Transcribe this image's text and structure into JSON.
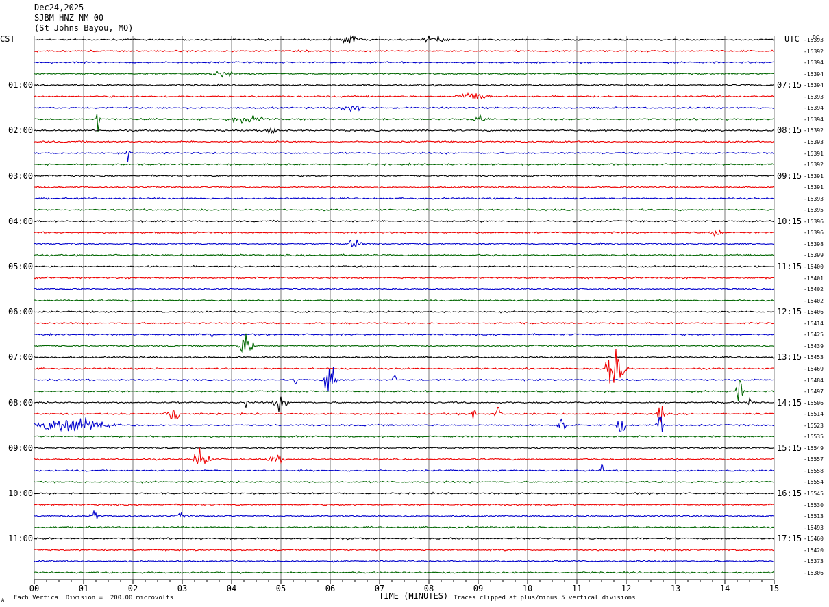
{
  "header": {
    "date": "Dec24,2025",
    "station": "SJBM HNZ NM 00",
    "location": "(St Johns Bayou, MO)"
  },
  "left_tz": "CST",
  "right_tz": "UTC",
  "dc_header": "DC",
  "cst_labels": [
    "01:00",
    "02:00",
    "03:00",
    "04:00",
    "05:00",
    "06:00",
    "07:00",
    "08:00",
    "09:00",
    "10:00",
    "11:00"
  ],
  "utc_labels": [
    "07:15",
    "08:15",
    "09:15",
    "10:15",
    "11:15",
    "12:15",
    "13:15",
    "14:15",
    "15:15",
    "16:15",
    "17:15"
  ],
  "footer": {
    "scale": "Each Vertical Division =  200.00 microvolts",
    "xlabel": "TIME (MINUTES)",
    "clip_note": "Traces clipped at plus/minus 5 vertical divisions",
    "corner_mark": "A"
  },
  "colors": {
    "trace_cycle": [
      "#000000",
      "#ee0000",
      "#0000cc",
      "#006600"
    ],
    "grid": "#7a7a7a"
  },
  "chart_data": {
    "type": "line",
    "title": "",
    "xlabel": "TIME (MINUTES)",
    "ylabel": "",
    "xlim": [
      0,
      15
    ],
    "x_ticks": [
      "00",
      "01",
      "02",
      "03",
      "04",
      "05",
      "06",
      "07",
      "08",
      "09",
      "10",
      "11",
      "12",
      "13",
      "14",
      "15"
    ],
    "row_minutes": 15,
    "dc_offsets": [
      -15393,
      -15392,
      -15394,
      -15394,
      -15394,
      -15393,
      -15394,
      -15394,
      -15392,
      -15393,
      -15391,
      -15392,
      -15391,
      -15391,
      -15393,
      -15395,
      -15396,
      -15396,
      -15398,
      -15399,
      -15400,
      -15401,
      -15402,
      -15402,
      -15406,
      -15414,
      -15425,
      -15439,
      -15453,
      -15469,
      -15484,
      -15497,
      -15506,
      -15514,
      -15523,
      -15535,
      -15549,
      -15557,
      -15558,
      -15554,
      -15545,
      -15530,
      -15513,
      -15493,
      -15460,
      -15420,
      -15373,
      -15306
    ],
    "events": [
      {
        "row": 0,
        "minute": 6.4,
        "amp": 1.2,
        "dur": 0.3
      },
      {
        "row": 0,
        "minute": 8.1,
        "amp": 1.2,
        "dur": 0.3
      },
      {
        "row": 3,
        "minute": 3.8,
        "amp": 1.0,
        "dur": 0.3
      },
      {
        "row": 5,
        "minute": 8.9,
        "amp": 1.5,
        "dur": 0.4
      },
      {
        "row": 6,
        "minute": 6.4,
        "amp": 1.2,
        "dur": 0.3
      },
      {
        "row": 7,
        "minute": 4.3,
        "amp": 1.0,
        "dur": 0.5
      },
      {
        "row": 7,
        "minute": 9.0,
        "amp": 1.0,
        "dur": 0.3
      },
      {
        "row": 7,
        "minute": 1.3,
        "amp": 6.0,
        "dur": 0.04
      },
      {
        "row": 8,
        "minute": 4.8,
        "amp": 1.4,
        "dur": 0.2
      },
      {
        "row": 10,
        "minute": 1.9,
        "amp": 3.0,
        "dur": 0.05
      },
      {
        "row": 17,
        "minute": 13.8,
        "amp": 1.3,
        "dur": 0.2
      },
      {
        "row": 18,
        "minute": 6.5,
        "amp": 1.5,
        "dur": 0.2
      },
      {
        "row": 26,
        "minute": 3.6,
        "amp": 2.5,
        "dur": 0.05
      },
      {
        "row": 27,
        "minute": 4.3,
        "amp": 4.0,
        "dur": 0.2
      },
      {
        "row": 29,
        "minute": 11.7,
        "amp": 10.0,
        "dur": 0.15
      },
      {
        "row": 29,
        "minute": 11.9,
        "amp": 6.0,
        "dur": 0.15
      },
      {
        "row": 30,
        "minute": 6.0,
        "amp": 10.0,
        "dur": 0.15
      },
      {
        "row": 30,
        "minute": 5.3,
        "amp": 2.0,
        "dur": 0.05
      },
      {
        "row": 30,
        "minute": 7.3,
        "amp": 2.0,
        "dur": 0.05
      },
      {
        "row": 31,
        "minute": 14.3,
        "amp": 4.0,
        "dur": 0.1
      },
      {
        "row": 32,
        "minute": 5.0,
        "amp": 2.5,
        "dur": 0.2
      },
      {
        "row": 32,
        "minute": 4.3,
        "amp": 2.0,
        "dur": 0.05
      },
      {
        "row": 32,
        "minute": 14.5,
        "amp": 2.0,
        "dur": 0.05
      },
      {
        "row": 33,
        "minute": 2.8,
        "amp": 4.0,
        "dur": 0.2
      },
      {
        "row": 33,
        "minute": 8.9,
        "amp": 2.0,
        "dur": 0.1
      },
      {
        "row": 33,
        "minute": 9.4,
        "amp": 2.0,
        "dur": 0.1
      },
      {
        "row": 33,
        "minute": 12.7,
        "amp": 3.5,
        "dur": 0.1
      },
      {
        "row": 34,
        "minute": 0.8,
        "amp": 3.0,
        "dur": 1.0
      },
      {
        "row": 34,
        "minute": 10.7,
        "amp": 4.0,
        "dur": 0.1
      },
      {
        "row": 34,
        "minute": 11.9,
        "amp": 4.0,
        "dur": 0.1
      },
      {
        "row": 34,
        "minute": 12.7,
        "amp": 5.0,
        "dur": 0.1
      },
      {
        "row": 37,
        "minute": 3.4,
        "amp": 5.0,
        "dur": 0.2
      },
      {
        "row": 37,
        "minute": 4.9,
        "amp": 1.5,
        "dur": 0.2
      },
      {
        "row": 38,
        "minute": 11.5,
        "amp": 2.0,
        "dur": 0.05
      },
      {
        "row": 42,
        "minute": 1.2,
        "amp": 4.0,
        "dur": 0.1
      },
      {
        "row": 42,
        "minute": 3.0,
        "amp": 1.2,
        "dur": 0.1
      }
    ]
  }
}
